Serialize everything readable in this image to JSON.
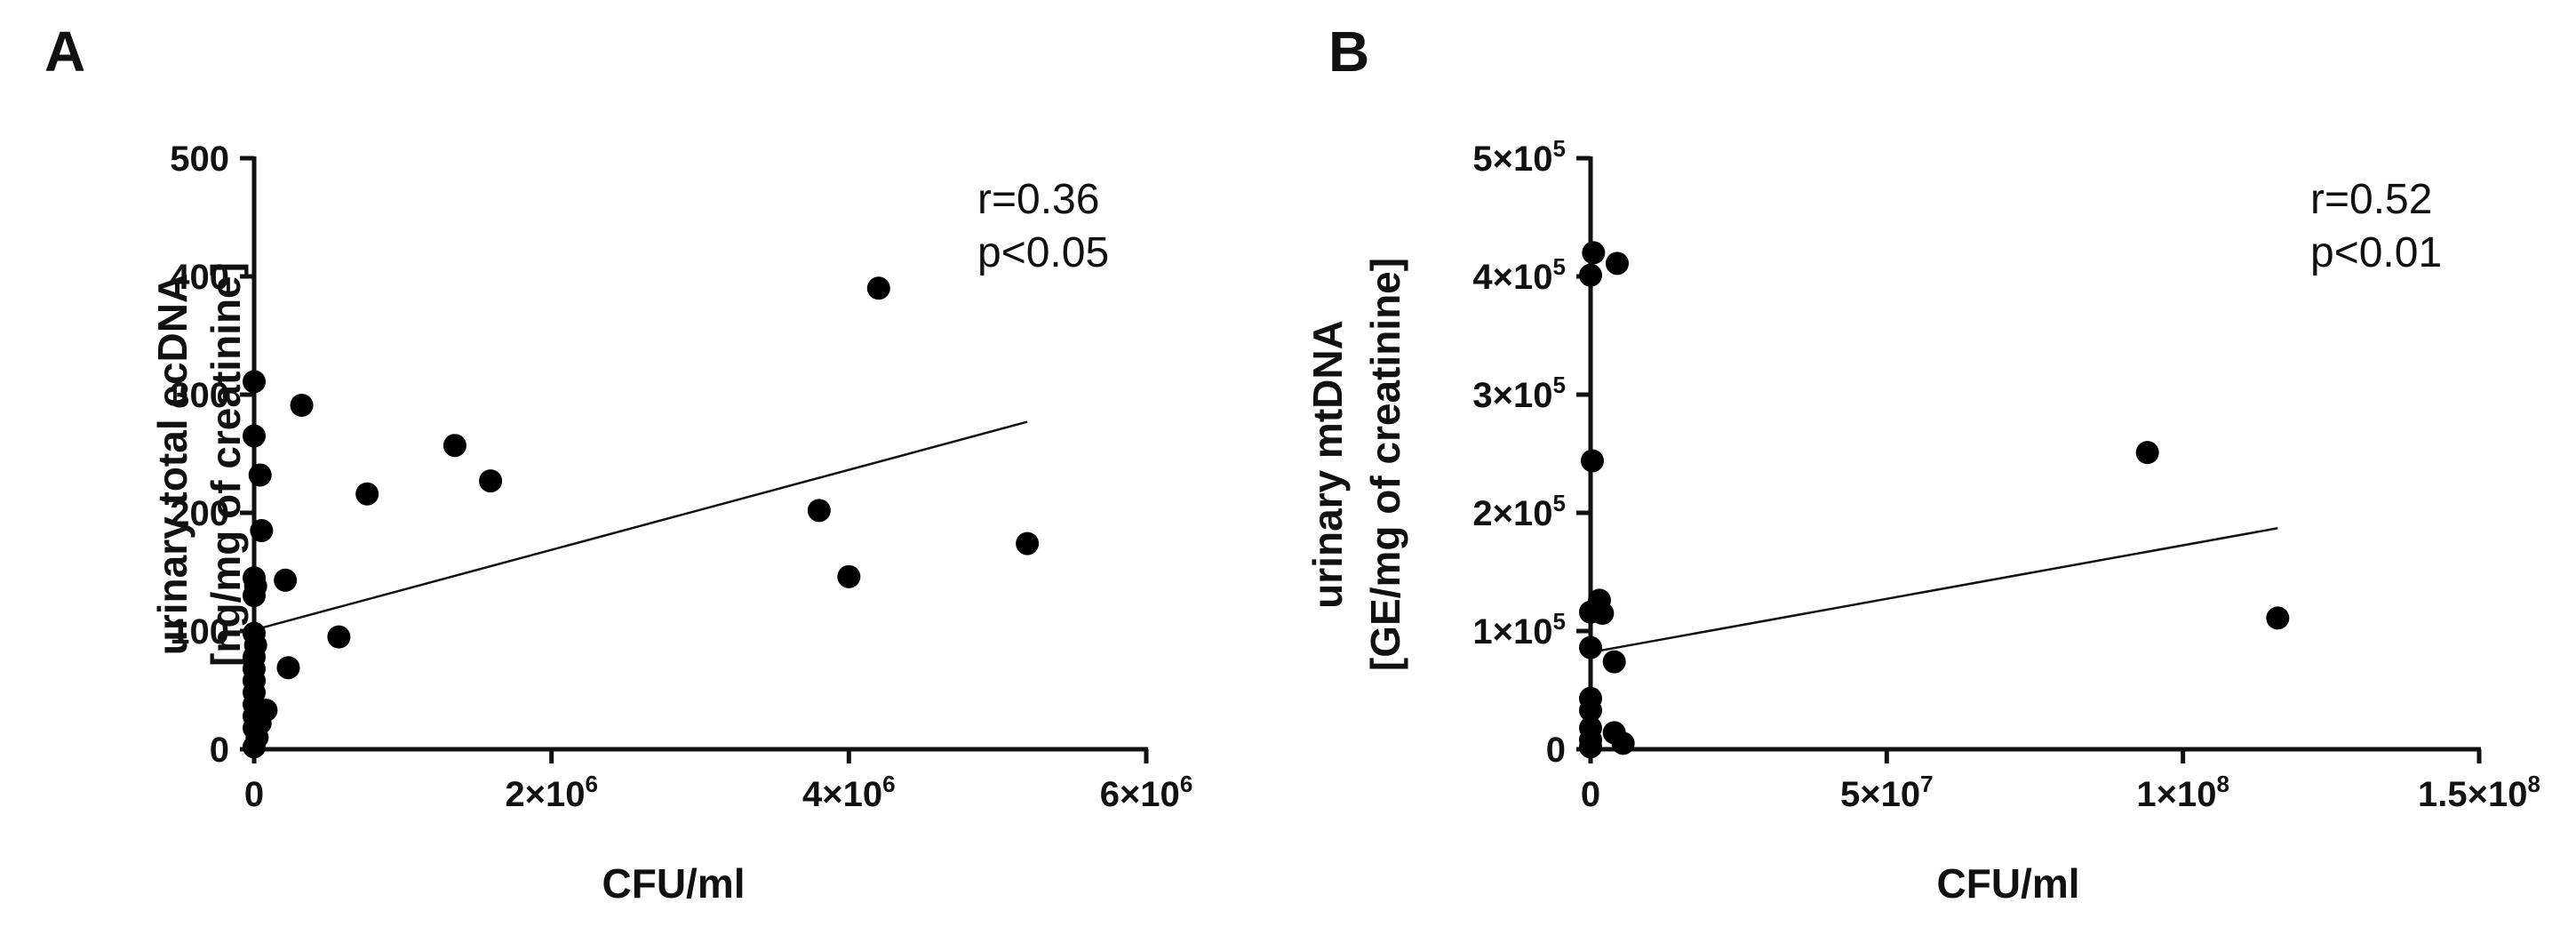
{
  "chart_data": [
    {
      "panel_label": "A",
      "type": "scatter",
      "xlabel": "CFU/ml",
      "ylabel": [
        "urinary total ecDNA",
        "[ng/mg of creatinine]"
      ],
      "xlim": [
        0,
        6000000
      ],
      "ylim": [
        0,
        500
      ],
      "xticks": [
        {
          "value": 0,
          "mant": "0",
          "exp": ""
        },
        {
          "value": 2000000,
          "mant": "2×10",
          "exp": "6"
        },
        {
          "value": 4000000,
          "mant": "4×10",
          "exp": "6"
        },
        {
          "value": 6000000,
          "mant": "6×10",
          "exp": "6"
        }
      ],
      "yticks": [
        {
          "value": 0,
          "mant": "0",
          "exp": ""
        },
        {
          "value": 100,
          "mant": "100",
          "exp": ""
        },
        {
          "value": 200,
          "mant": "200",
          "exp": ""
        },
        {
          "value": 300,
          "mant": "300",
          "exp": ""
        },
        {
          "value": 400,
          "mant": "400",
          "exp": ""
        },
        {
          "value": 500,
          "mant": "500",
          "exp": ""
        }
      ],
      "points": [
        [
          0,
          311
        ],
        [
          0,
          265
        ],
        [
          40000,
          232
        ],
        [
          50000,
          185
        ],
        [
          0,
          145
        ],
        [
          10000,
          138
        ],
        [
          0,
          130
        ],
        [
          0,
          98
        ],
        [
          10000,
          88
        ],
        [
          0,
          78
        ],
        [
          0,
          68
        ],
        [
          0,
          58
        ],
        [
          0,
          48
        ],
        [
          0,
          38
        ],
        [
          0,
          28
        ],
        [
          0,
          18
        ],
        [
          0,
          2
        ],
        [
          20000,
          10
        ],
        [
          40000,
          22
        ],
        [
          80000,
          33
        ],
        [
          210000,
          143
        ],
        [
          230000,
          69
        ],
        [
          320000,
          291
        ],
        [
          570000,
          95
        ],
        [
          760000,
          216
        ],
        [
          1350000,
          257
        ],
        [
          1590000,
          227
        ],
        [
          3800000,
          202
        ],
        [
          4000000,
          146
        ],
        [
          4200000,
          390
        ],
        [
          5200000,
          174
        ]
      ],
      "regression": {
        "x": [
          0,
          5200000
        ],
        "y": [
          101,
          277
        ]
      },
      "annotation": {
        "r": "r=0.36",
        "p": "p<0.05"
      }
    },
    {
      "panel_label": "B",
      "type": "scatter",
      "xlabel": "CFU/ml",
      "ylabel": [
        "urinary mtDNA",
        "[GE/mg of creatinine]"
      ],
      "xlim": [
        0,
        150000000
      ],
      "ylim": [
        0,
        500000
      ],
      "xticks": [
        {
          "value": 0,
          "mant": "0",
          "exp": ""
        },
        {
          "value": 50000000,
          "mant": "5×10",
          "exp": "7"
        },
        {
          "value": 100000000,
          "mant": "1×10",
          "exp": "8"
        },
        {
          "value": 150000000,
          "mant": "1.5×10",
          "exp": "8"
        }
      ],
      "yticks": [
        {
          "value": 0,
          "mant": "0",
          "exp": ""
        },
        {
          "value": 100000,
          "mant": "1×10",
          "exp": "5"
        },
        {
          "value": 200000,
          "mant": "2×10",
          "exp": "5"
        },
        {
          "value": 300000,
          "mant": "3×10",
          "exp": "5"
        },
        {
          "value": 400000,
          "mant": "4×10",
          "exp": "5"
        },
        {
          "value": 500000,
          "mant": "5×10",
          "exp": "5"
        }
      ],
      "points": [
        [
          500000,
          420000
        ],
        [
          0,
          401000
        ],
        [
          4500000,
          411000
        ],
        [
          300000,
          244000
        ],
        [
          1500000,
          126000
        ],
        [
          2000000,
          115000
        ],
        [
          0,
          116000
        ],
        [
          0,
          86000
        ],
        [
          4000000,
          74000
        ],
        [
          0,
          43000
        ],
        [
          0,
          33000
        ],
        [
          0,
          18000
        ],
        [
          0,
          8000
        ],
        [
          0,
          2000
        ],
        [
          4000000,
          14000
        ],
        [
          5500000,
          5000
        ],
        [
          94000000,
          251000
        ],
        [
          116000000,
          111000
        ]
      ],
      "regression": {
        "x": [
          0,
          116000000
        ],
        "y": [
          82000,
          187000
        ]
      },
      "annotation": {
        "r": "r=0.52",
        "p": "p<0.01"
      }
    }
  ]
}
